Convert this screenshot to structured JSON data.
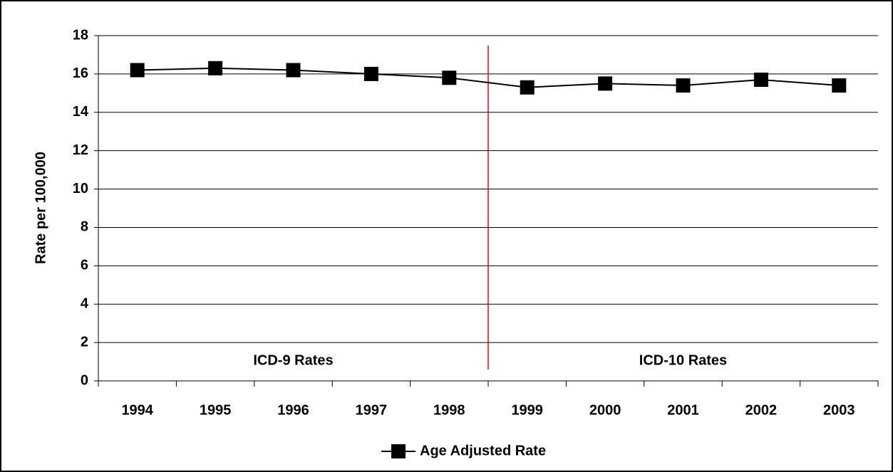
{
  "chart_data": {
    "type": "line",
    "y_label": "Rate per 100,000",
    "categories": [
      "1994",
      "1995",
      "1996",
      "1997",
      "1998",
      "1999",
      "2000",
      "2001",
      "2002",
      "2003"
    ],
    "series": [
      {
        "name": "Age Adjusted Rate",
        "color": "#000000",
        "marker": "square",
        "values": [
          16.2,
          16.3,
          16.2,
          16.0,
          15.8,
          15.3,
          15.5,
          15.4,
          15.7,
          15.4
        ]
      }
    ],
    "ylim": [
      0,
      18
    ],
    "yticks": [
      0,
      2,
      4,
      6,
      8,
      10,
      12,
      14,
      16,
      18
    ],
    "grid": true,
    "annotations": [
      "ICD-9 Rates",
      "ICD-10 Rates"
    ],
    "divider": {
      "between": [
        4,
        5
      ],
      "color": "#ff0000"
    },
    "legend": "bottom"
  }
}
